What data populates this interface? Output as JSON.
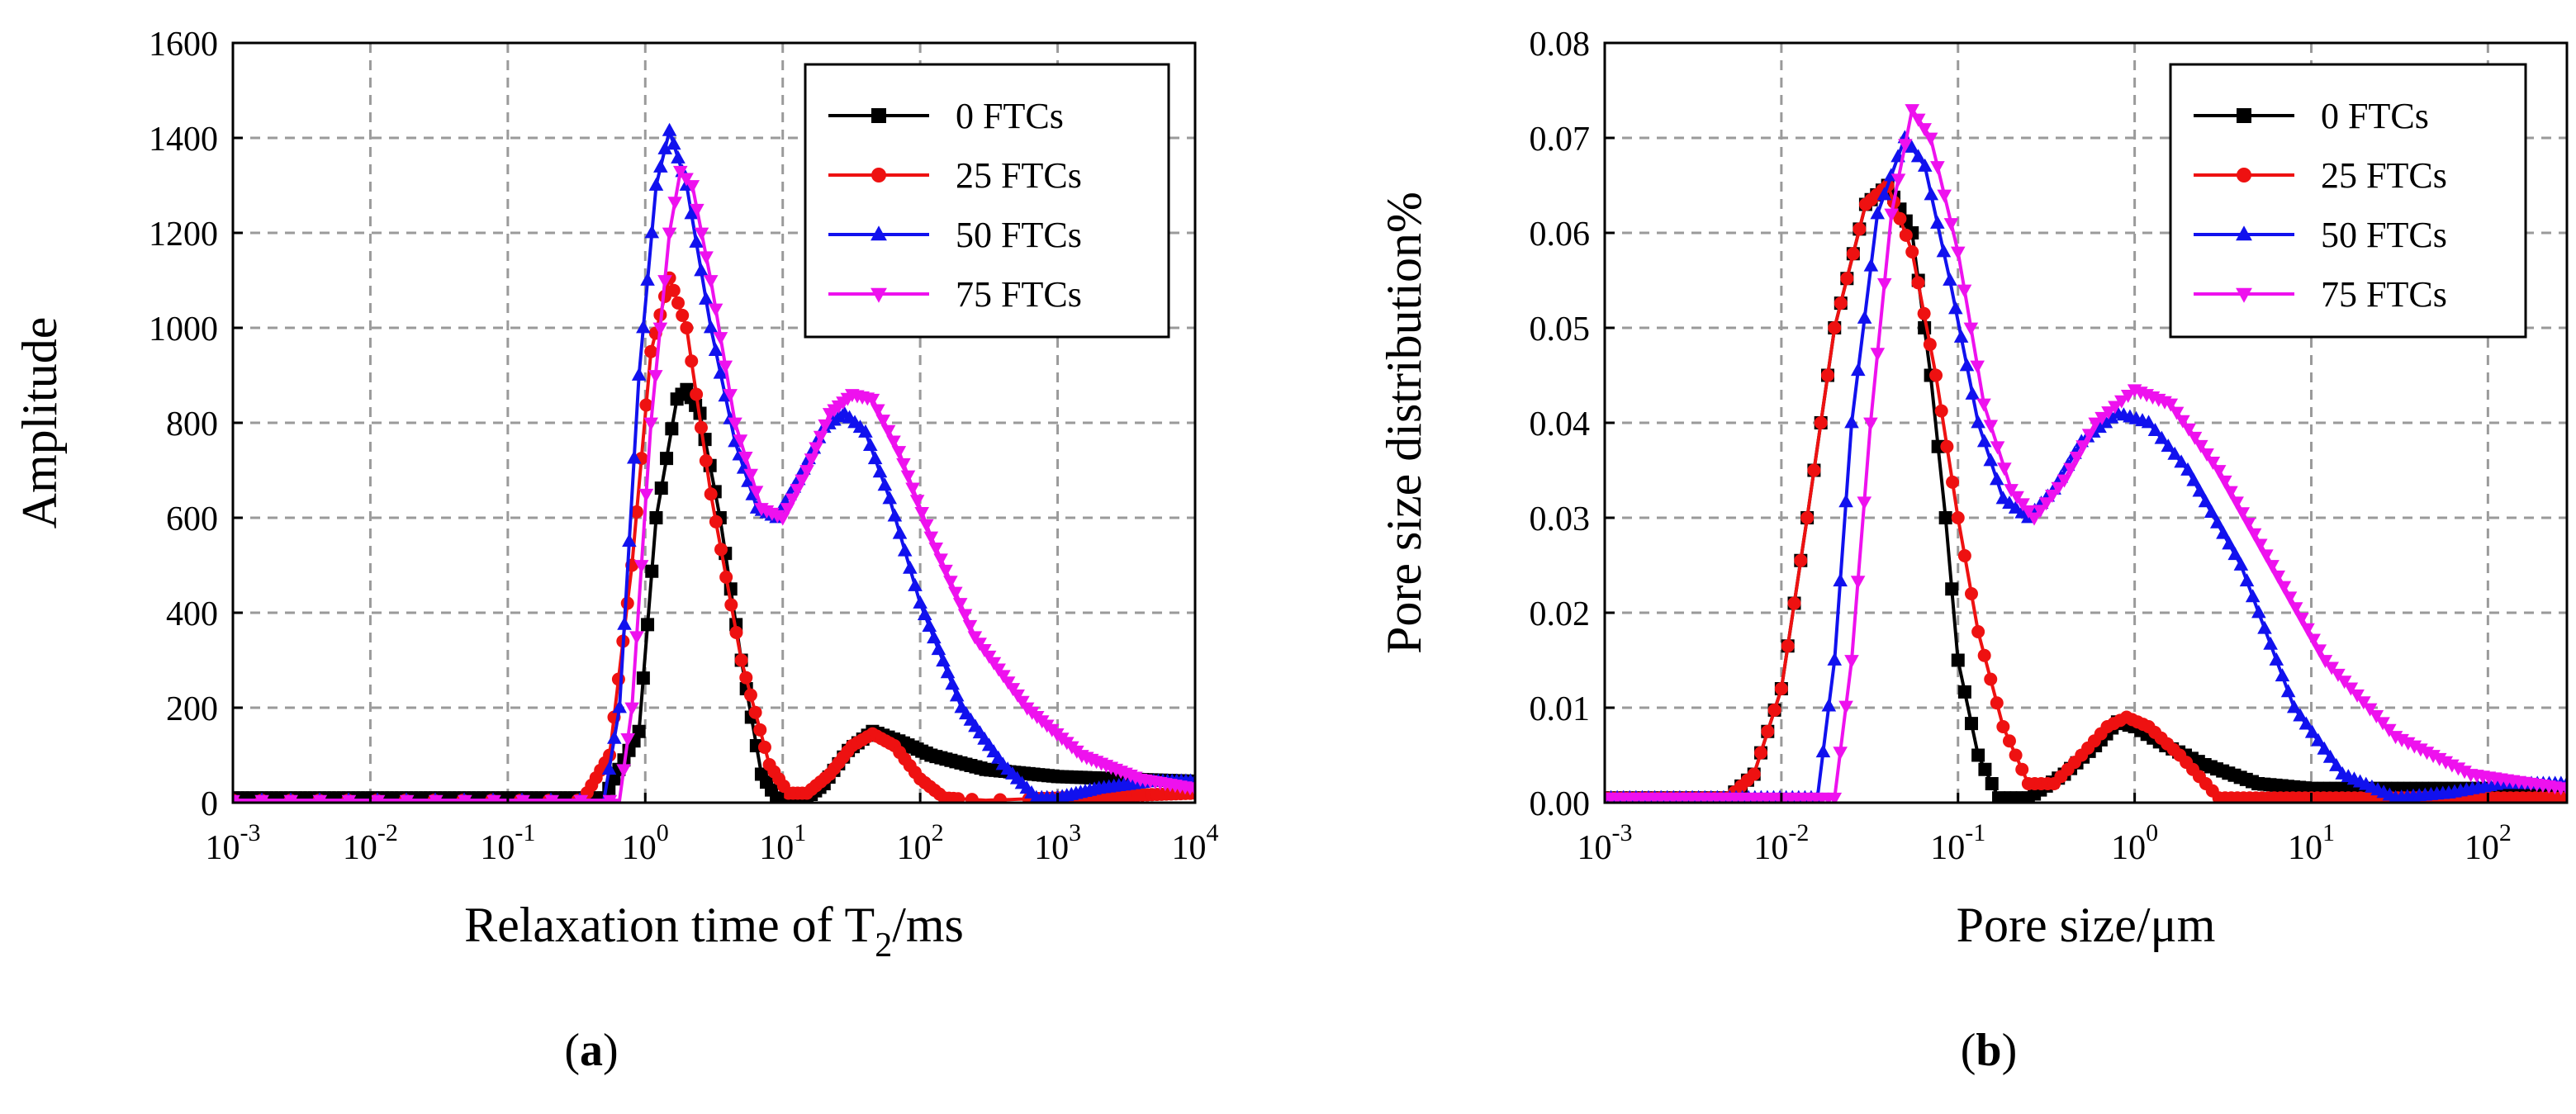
{
  "chart_data": [
    {
      "type": "line",
      "panel_label": "a",
      "ylabel": "Amplitude",
      "xlabel_main": "Relaxation time of T",
      "xlabel_sub": "2",
      "xlabel_tail": "/ms",
      "xscale": "log",
      "xlim": [
        0.001,
        10000
      ],
      "ylim": [
        0,
        1600
      ],
      "x_ticks": [
        0.001,
        0.01,
        0.1,
        1,
        10,
        100,
        1000,
        10000
      ],
      "x_tick_exponents": [
        "-3",
        "-2",
        "-1",
        "0",
        "1",
        "2",
        "3",
        "4"
      ],
      "y_ticks": [
        "0",
        "200",
        "400",
        "600",
        "800",
        "1000",
        "1200",
        "1400",
        "1600"
      ],
      "grid": true,
      "legend_position": "top-right",
      "series": [
        {
          "name": "0 FTCs",
          "color": "#000000",
          "marker": "square",
          "points": [
            [
              0.001,
              10
            ],
            [
              0.5,
              10
            ],
            [
              0.9,
              150
            ],
            [
              1.2,
              600
            ],
            [
              1.7,
              850
            ],
            [
              2.0,
              870
            ],
            [
              2.5,
              820
            ],
            [
              3.5,
              600
            ],
            [
              5,
              300
            ],
            [
              7,
              60
            ],
            [
              9,
              10
            ],
            [
              12,
              5
            ],
            [
              15,
              10
            ],
            [
              20,
              40
            ],
            [
              30,
              110
            ],
            [
              45,
              150
            ],
            [
              70,
              130
            ],
            [
              120,
              100
            ],
            [
              300,
              70
            ],
            [
              1000,
              55
            ],
            [
              3000,
              50
            ],
            [
              10000,
              45
            ]
          ]
        },
        {
          "name": "25 FTCs",
          "color": "#ee1111",
          "marker": "circle",
          "points": [
            [
              0.001,
              5
            ],
            [
              0.35,
              5
            ],
            [
              0.55,
              100
            ],
            [
              0.8,
              500
            ],
            [
              1.1,
              950
            ],
            [
              1.5,
              1105
            ],
            [
              2.0,
              1000
            ],
            [
              3.0,
              650
            ],
            [
              5,
              300
            ],
            [
              8,
              80
            ],
            [
              11,
              20
            ],
            [
              15,
              20
            ],
            [
              22,
              60
            ],
            [
              32,
              120
            ],
            [
              45,
              145
            ],
            [
              65,
              120
            ],
            [
              100,
              50
            ],
            [
              150,
              10
            ],
            [
              300,
              5
            ],
            [
              1000,
              10
            ],
            [
              3000,
              15
            ],
            [
              10000,
              20
            ]
          ]
        },
        {
          "name": "50 FTCs",
          "color": "#1111ee",
          "marker": "triangle-up",
          "points": [
            [
              0.001,
              5
            ],
            [
              0.5,
              5
            ],
            [
              0.65,
              200
            ],
            [
              0.9,
              900
            ],
            [
              1.2,
              1300
            ],
            [
              1.5,
              1415
            ],
            [
              2.0,
              1300
            ],
            [
              3.0,
              1000
            ],
            [
              4.5,
              760
            ],
            [
              6.5,
              620
            ],
            [
              9,
              600
            ],
            [
              13,
              680
            ],
            [
              20,
              790
            ],
            [
              28,
              820
            ],
            [
              40,
              780
            ],
            [
              60,
              640
            ],
            [
              100,
              420
            ],
            [
              200,
              200
            ],
            [
              400,
              80
            ],
            [
              700,
              10
            ],
            [
              1000,
              10
            ],
            [
              2000,
              30
            ],
            [
              5000,
              45
            ],
            [
              10000,
              45
            ]
          ]
        },
        {
          "name": "75 FTCs",
          "color": "#ee11ee",
          "marker": "triangle-down",
          "points": [
            [
              0.001,
              5
            ],
            [
              0.65,
              5
            ],
            [
              0.8,
              200
            ],
            [
              1.1,
              800
            ],
            [
              1.5,
              1200
            ],
            [
              1.8,
              1330
            ],
            [
              2.2,
              1300
            ],
            [
              3.0,
              1100
            ],
            [
              4.5,
              800
            ],
            [
              7,
              620
            ],
            [
              10,
              600
            ],
            [
              15,
              700
            ],
            [
              22,
              820
            ],
            [
              32,
              860
            ],
            [
              45,
              850
            ],
            [
              70,
              740
            ],
            [
              120,
              560
            ],
            [
              250,
              350
            ],
            [
              600,
              200
            ],
            [
              1500,
              100
            ],
            [
              4000,
              50
            ],
            [
              10000,
              30
            ]
          ]
        }
      ]
    },
    {
      "type": "line",
      "panel_label": "b",
      "ylabel": "Pore size distribution%",
      "xlabel": "Pore size/μm",
      "xscale": "log",
      "xlim": [
        0.001,
        280
      ],
      "ylim": [
        0,
        0.08
      ],
      "x_ticks": [
        0.001,
        0.01,
        0.1,
        1,
        10,
        100
      ],
      "x_tick_exponents": [
        "-3",
        "-2",
        "-1",
        "0",
        "1",
        "2"
      ],
      "y_ticks": [
        "0.00",
        "0.01",
        "0.02",
        "0.03",
        "0.04",
        "0.05",
        "0.06",
        "0.07",
        "0.08"
      ],
      "grid": true,
      "legend_position": "top-right",
      "series": [
        {
          "name": "0 FTCs",
          "color": "#000000",
          "marker": "square",
          "points": [
            [
              0.001,
              0.0005
            ],
            [
              0.005,
              0.0005
            ],
            [
              0.007,
              0.003
            ],
            [
              0.01,
              0.012
            ],
            [
              0.014,
              0.03
            ],
            [
              0.02,
              0.05
            ],
            [
              0.03,
              0.063
            ],
            [
              0.04,
              0.065
            ],
            [
              0.055,
              0.06
            ],
            [
              0.07,
              0.045
            ],
            [
              0.085,
              0.03
            ],
            [
              0.1,
              0.015
            ],
            [
              0.13,
              0.005
            ],
            [
              0.17,
              0.0005
            ],
            [
              0.25,
              0.0005
            ],
            [
              0.4,
              0.003
            ],
            [
              0.6,
              0.006
            ],
            [
              0.8,
              0.0085
            ],
            [
              1.0,
              0.008
            ],
            [
              1.5,
              0.006
            ],
            [
              2.5,
              0.004
            ],
            [
              5,
              0.002
            ],
            [
              10,
              0.0015
            ],
            [
              50,
              0.0015
            ],
            [
              280,
              0.0015
            ]
          ]
        },
        {
          "name": "25 FTCs",
          "color": "#ee1111",
          "marker": "circle",
          "points": [
            [
              0.001,
              0.0005
            ],
            [
              0.005,
              0.0005
            ],
            [
              0.007,
              0.003
            ],
            [
              0.01,
              0.012
            ],
            [
              0.014,
              0.03
            ],
            [
              0.02,
              0.05
            ],
            [
              0.03,
              0.063
            ],
            [
              0.04,
              0.065
            ],
            [
              0.055,
              0.058
            ],
            [
              0.075,
              0.045
            ],
            [
              0.1,
              0.03
            ],
            [
              0.13,
              0.018
            ],
            [
              0.18,
              0.008
            ],
            [
              0.25,
              0.002
            ],
            [
              0.35,
              0.002
            ],
            [
              0.5,
              0.005
            ],
            [
              0.7,
              0.008
            ],
            [
              0.9,
              0.009
            ],
            [
              1.2,
              0.008
            ],
            [
              1.8,
              0.005
            ],
            [
              3,
              0.0005
            ],
            [
              10,
              0.0005
            ],
            [
              50,
              0.0005
            ],
            [
              280,
              0.0005
            ]
          ]
        },
        {
          "name": "50 FTCs",
          "color": "#1111ee",
          "marker": "triangle-up",
          "points": [
            [
              0.001,
              0.0005
            ],
            [
              0.016,
              0.0005
            ],
            [
              0.02,
              0.015
            ],
            [
              0.025,
              0.04
            ],
            [
              0.035,
              0.062
            ],
            [
              0.05,
              0.07
            ],
            [
              0.065,
              0.067
            ],
            [
              0.09,
              0.055
            ],
            [
              0.13,
              0.04
            ],
            [
              0.18,
              0.032
            ],
            [
              0.25,
              0.03
            ],
            [
              0.35,
              0.033
            ],
            [
              0.5,
              0.038
            ],
            [
              0.8,
              0.041
            ],
            [
              1.2,
              0.04
            ],
            [
              2,
              0.035
            ],
            [
              4,
              0.025
            ],
            [
              8,
              0.01
            ],
            [
              15,
              0.003
            ],
            [
              30,
              0.0005
            ],
            [
              60,
              0.001
            ],
            [
              120,
              0.002
            ],
            [
              280,
              0.002
            ]
          ]
        },
        {
          "name": "75 FTCs",
          "color": "#ee11ee",
          "marker": "triangle-down",
          "points": [
            [
              0.001,
              0.0005
            ],
            [
              0.02,
              0.0005
            ],
            [
              0.025,
              0.015
            ],
            [
              0.032,
              0.04
            ],
            [
              0.042,
              0.062
            ],
            [
              0.055,
              0.073
            ],
            [
              0.07,
              0.07
            ],
            [
              0.1,
              0.058
            ],
            [
              0.14,
              0.042
            ],
            [
              0.2,
              0.033
            ],
            [
              0.27,
              0.03
            ],
            [
              0.4,
              0.034
            ],
            [
              0.6,
              0.04
            ],
            [
              1.0,
              0.0435
            ],
            [
              1.6,
              0.042
            ],
            [
              3,
              0.035
            ],
            [
              6,
              0.025
            ],
            [
              12,
              0.015
            ],
            [
              30,
              0.007
            ],
            [
              80,
              0.003
            ],
            [
              280,
              0.0015
            ]
          ]
        }
      ]
    }
  ]
}
